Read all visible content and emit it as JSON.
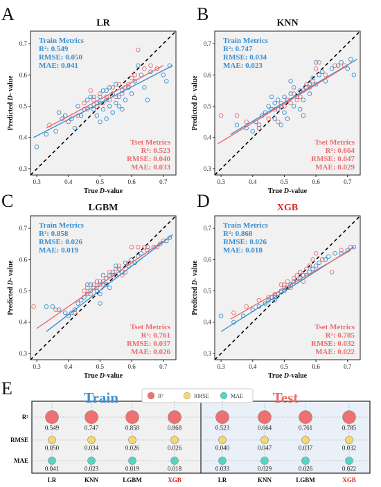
{
  "colors": {
    "train": "#3a8fd0",
    "test": "#ee6b6b",
    "r2_bubble": "#ee7070",
    "rmse_bubble": "#f6d86e",
    "mae_bubble": "#52d6c4",
    "highlight": "#e02020",
    "identity": "#000000"
  },
  "chart_data": [
    {
      "panel_letter": "A",
      "type": "scatter",
      "title": "LR",
      "title_highlight": false,
      "xlabel_prefix": "True ",
      "xlabel_italic": "D",
      "xlabel_suffix": "-value",
      "ylabel_prefix": "Predicted ",
      "ylabel_italic": "D",
      "ylabel_suffix": "- value",
      "xlim": [
        0.28,
        0.74
      ],
      "ylim": [
        0.28,
        0.74
      ],
      "xticks": [
        0.3,
        0.4,
        0.5,
        0.6,
        0.7
      ],
      "yticks": [
        0.3,
        0.4,
        0.5,
        0.6,
        0.7
      ],
      "train_metrics": {
        "heading": "Train Metrics",
        "r2": "R²: 0.549",
        "rmse": "RMSE: 0.050",
        "mae": "MAE: 0.041"
      },
      "test_metrics": {
        "heading": "Tset Metrics",
        "r2": "R²: 0.523",
        "rmse": "RMSE: 0.040",
        "mae": "MAE: 0.033"
      },
      "train_fit": [
        [
          0.29,
          0.4
        ],
        [
          0.73,
          0.63
        ]
      ],
      "test_fit": [
        [
          0.33,
          0.43
        ],
        [
          0.7,
          0.63
        ]
      ],
      "train_points": [
        [
          0.3,
          0.37
        ],
        [
          0.33,
          0.41
        ],
        [
          0.36,
          0.42
        ],
        [
          0.37,
          0.48
        ],
        [
          0.38,
          0.46
        ],
        [
          0.39,
          0.47
        ],
        [
          0.4,
          0.45
        ],
        [
          0.41,
          0.46
        ],
        [
          0.42,
          0.43
        ],
        [
          0.43,
          0.5
        ],
        [
          0.44,
          0.47
        ],
        [
          0.45,
          0.49
        ],
        [
          0.46,
          0.52
        ],
        [
          0.47,
          0.5
        ],
        [
          0.48,
          0.53
        ],
        [
          0.48,
          0.49
        ],
        [
          0.49,
          0.51
        ],
        [
          0.49,
          0.47
        ],
        [
          0.5,
          0.53
        ],
        [
          0.5,
          0.45
        ],
        [
          0.51,
          0.55
        ],
        [
          0.51,
          0.49
        ],
        [
          0.52,
          0.52
        ],
        [
          0.52,
          0.46
        ],
        [
          0.53,
          0.56
        ],
        [
          0.53,
          0.5
        ],
        [
          0.54,
          0.54
        ],
        [
          0.54,
          0.48
        ],
        [
          0.55,
          0.57
        ],
        [
          0.55,
          0.51
        ],
        [
          0.56,
          0.53
        ],
        [
          0.57,
          0.55
        ],
        [
          0.57,
          0.49
        ],
        [
          0.58,
          0.52
        ],
        [
          0.59,
          0.56
        ],
        [
          0.6,
          0.54
        ],
        [
          0.61,
          0.58
        ],
        [
          0.62,
          0.63
        ],
        [
          0.63,
          0.6
        ],
        [
          0.64,
          0.56
        ],
        [
          0.65,
          0.52
        ],
        [
          0.66,
          0.61
        ],
        [
          0.68,
          0.62
        ],
        [
          0.7,
          0.6
        ],
        [
          0.71,
          0.58
        ],
        [
          0.72,
          0.63
        ],
        [
          0.52,
          0.55
        ],
        [
          0.47,
          0.53
        ],
        [
          0.56,
          0.5
        ],
        [
          0.5,
          0.51
        ]
      ],
      "test_points": [
        [
          0.34,
          0.44
        ],
        [
          0.4,
          0.45
        ],
        [
          0.43,
          0.47
        ],
        [
          0.45,
          0.51
        ],
        [
          0.46,
          0.49
        ],
        [
          0.48,
          0.52
        ],
        [
          0.49,
          0.5
        ],
        [
          0.5,
          0.54
        ],
        [
          0.51,
          0.51
        ],
        [
          0.52,
          0.53
        ],
        [
          0.53,
          0.52
        ],
        [
          0.54,
          0.56
        ],
        [
          0.55,
          0.53
        ],
        [
          0.56,
          0.57
        ],
        [
          0.57,
          0.54
        ],
        [
          0.58,
          0.56
        ],
        [
          0.59,
          0.57
        ],
        [
          0.6,
          0.59
        ],
        [
          0.61,
          0.6
        ],
        [
          0.62,
          0.68
        ],
        [
          0.64,
          0.62
        ],
        [
          0.66,
          0.63
        ],
        [
          0.68,
          0.62
        ],
        [
          0.47,
          0.55
        ]
      ]
    },
    {
      "panel_letter": "B",
      "type": "scatter",
      "title": "KNN",
      "title_highlight": false,
      "xlabel_prefix": "True ",
      "xlabel_italic": "D",
      "xlabel_suffix": "-value",
      "ylabel_prefix": "Predicted ",
      "ylabel_italic": "D",
      "ylabel_suffix": "- value",
      "xlim": [
        0.28,
        0.74
      ],
      "ylim": [
        0.28,
        0.74
      ],
      "xticks": [
        0.3,
        0.4,
        0.5,
        0.6,
        0.7
      ],
      "yticks": [
        0.3,
        0.4,
        0.5,
        0.6,
        0.7
      ],
      "train_metrics": {
        "heading": "Train Metrics",
        "r2": "R²: 0.747",
        "rmse": "RMSE: 0.034",
        "mae": "MAE: 0.023"
      },
      "test_metrics": {
        "heading": "Tset Metrics",
        "r2": "R²: 0.664",
        "rmse": "RMSE: 0.047",
        "mae": "MAE: 0.029"
      },
      "train_fit": [
        [
          0.33,
          0.41
        ],
        [
          0.73,
          0.65
        ]
      ],
      "test_fit": [
        [
          0.29,
          0.38
        ],
        [
          0.7,
          0.63
        ]
      ],
      "train_points": [
        [
          0.35,
          0.44
        ],
        [
          0.38,
          0.43
        ],
        [
          0.4,
          0.42
        ],
        [
          0.41,
          0.45
        ],
        [
          0.42,
          0.44
        ],
        [
          0.43,
          0.47
        ],
        [
          0.44,
          0.48
        ],
        [
          0.45,
          0.5
        ],
        [
          0.46,
          0.49
        ],
        [
          0.47,
          0.51
        ],
        [
          0.47,
          0.46
        ],
        [
          0.48,
          0.52
        ],
        [
          0.48,
          0.49
        ],
        [
          0.49,
          0.5
        ],
        [
          0.5,
          0.53
        ],
        [
          0.5,
          0.48
        ],
        [
          0.51,
          0.52
        ],
        [
          0.51,
          0.46
        ],
        [
          0.52,
          0.54
        ],
        [
          0.53,
          0.5
        ],
        [
          0.53,
          0.56
        ],
        [
          0.54,
          0.53
        ],
        [
          0.55,
          0.55
        ],
        [
          0.55,
          0.49
        ],
        [
          0.56,
          0.52
        ],
        [
          0.57,
          0.56
        ],
        [
          0.58,
          0.54
        ],
        [
          0.58,
          0.57
        ],
        [
          0.59,
          0.59
        ],
        [
          0.6,
          0.57
        ],
        [
          0.61,
          0.6
        ],
        [
          0.62,
          0.61
        ],
        [
          0.63,
          0.58
        ],
        [
          0.65,
          0.62
        ],
        [
          0.67,
          0.63
        ],
        [
          0.68,
          0.64
        ],
        [
          0.7,
          0.62
        ],
        [
          0.71,
          0.65
        ],
        [
          0.72,
          0.6
        ],
        [
          0.52,
          0.58
        ],
        [
          0.49,
          0.44
        ],
        [
          0.56,
          0.47
        ],
        [
          0.46,
          0.53
        ],
        [
          0.6,
          0.64
        ]
      ],
      "test_points": [
        [
          0.3,
          0.47
        ],
        [
          0.35,
          0.47
        ],
        [
          0.38,
          0.45
        ],
        [
          0.42,
          0.43
        ],
        [
          0.45,
          0.46
        ],
        [
          0.47,
          0.49
        ],
        [
          0.49,
          0.51
        ],
        [
          0.5,
          0.5
        ],
        [
          0.51,
          0.52
        ],
        [
          0.52,
          0.51
        ],
        [
          0.53,
          0.54
        ],
        [
          0.54,
          0.52
        ],
        [
          0.55,
          0.53
        ],
        [
          0.56,
          0.55
        ],
        [
          0.57,
          0.57
        ],
        [
          0.58,
          0.56
        ],
        [
          0.59,
          0.58
        ],
        [
          0.6,
          0.62
        ],
        [
          0.61,
          0.64
        ],
        [
          0.63,
          0.6
        ],
        [
          0.66,
          0.63
        ],
        [
          0.69,
          0.63
        ],
        [
          0.48,
          0.45
        ]
      ]
    },
    {
      "panel_letter": "C",
      "type": "scatter",
      "title": "LGBM",
      "title_highlight": false,
      "xlabel_prefix": "True ",
      "xlabel_italic": "D",
      "xlabel_suffix": "-value",
      "ylabel_prefix": "Predicted ",
      "ylabel_italic": "D",
      "ylabel_suffix": "- value",
      "xlim": [
        0.28,
        0.74
      ],
      "ylim": [
        0.28,
        0.74
      ],
      "xticks": [
        0.3,
        0.4,
        0.5,
        0.6,
        0.7
      ],
      "yticks": [
        0.3,
        0.4,
        0.5,
        0.6,
        0.7
      ],
      "train_metrics": {
        "heading": "Train Metrics",
        "r2": "R²: 0.858",
        "rmse": "RMSE: 0.026",
        "mae": "MAE: 0.019"
      },
      "test_metrics": {
        "heading": "Tset Metrics",
        "r2": "R²: 0.761",
        "rmse": "RMSE: 0.037",
        "mae": "MAE: 0.026"
      },
      "train_fit": [
        [
          0.33,
          0.37
        ],
        [
          0.73,
          0.68
        ]
      ],
      "test_fit": [
        [
          0.3,
          0.38
        ],
        [
          0.7,
          0.66
        ]
      ],
      "train_points": [
        [
          0.33,
          0.45
        ],
        [
          0.35,
          0.45
        ],
        [
          0.37,
          0.44
        ],
        [
          0.39,
          0.43
        ],
        [
          0.4,
          0.42
        ],
        [
          0.41,
          0.43
        ],
        [
          0.42,
          0.44
        ],
        [
          0.43,
          0.46
        ],
        [
          0.44,
          0.47
        ],
        [
          0.45,
          0.48
        ],
        [
          0.46,
          0.49
        ],
        [
          0.47,
          0.5
        ],
        [
          0.47,
          0.52
        ],
        [
          0.48,
          0.51
        ],
        [
          0.49,
          0.5
        ],
        [
          0.49,
          0.53
        ],
        [
          0.5,
          0.52
        ],
        [
          0.5,
          0.49
        ],
        [
          0.51,
          0.53
        ],
        [
          0.51,
          0.55
        ],
        [
          0.52,
          0.52
        ],
        [
          0.52,
          0.54
        ],
        [
          0.53,
          0.55
        ],
        [
          0.53,
          0.51
        ],
        [
          0.54,
          0.56
        ],
        [
          0.55,
          0.55
        ],
        [
          0.55,
          0.58
        ],
        [
          0.56,
          0.57
        ],
        [
          0.57,
          0.56
        ],
        [
          0.58,
          0.59
        ],
        [
          0.59,
          0.58
        ],
        [
          0.6,
          0.6
        ],
        [
          0.61,
          0.59
        ],
        [
          0.62,
          0.61
        ],
        [
          0.63,
          0.62
        ],
        [
          0.65,
          0.63
        ],
        [
          0.67,
          0.64
        ],
        [
          0.69,
          0.65
        ],
        [
          0.71,
          0.66
        ],
        [
          0.72,
          0.67
        ],
        [
          0.5,
          0.46
        ],
        [
          0.46,
          0.52
        ]
      ],
      "test_points": [
        [
          0.29,
          0.45
        ],
        [
          0.36,
          0.44
        ],
        [
          0.42,
          0.43
        ],
        [
          0.45,
          0.5
        ],
        [
          0.46,
          0.51
        ],
        [
          0.47,
          0.49
        ],
        [
          0.48,
          0.52
        ],
        [
          0.49,
          0.51
        ],
        [
          0.5,
          0.53
        ],
        [
          0.51,
          0.52
        ],
        [
          0.52,
          0.54
        ],
        [
          0.53,
          0.56
        ],
        [
          0.54,
          0.55
        ],
        [
          0.55,
          0.57
        ],
        [
          0.56,
          0.58
        ],
        [
          0.57,
          0.55
        ],
        [
          0.58,
          0.56
        ],
        [
          0.59,
          0.59
        ],
        [
          0.6,
          0.64
        ],
        [
          0.62,
          0.64
        ],
        [
          0.64,
          0.64
        ],
        [
          0.65,
          0.64
        ],
        [
          0.68,
          0.64
        ],
        [
          0.7,
          0.66
        ]
      ]
    },
    {
      "panel_letter": "D",
      "type": "scatter",
      "title": "XGB",
      "title_highlight": true,
      "xlabel_prefix": "True ",
      "xlabel_italic": "D",
      "xlabel_suffix": "-value",
      "ylabel_prefix": "Predicted ",
      "ylabel_italic": "D",
      "ylabel_suffix": "- value",
      "xlim": [
        0.28,
        0.74
      ],
      "ylim": [
        0.28,
        0.74
      ],
      "xticks": [
        0.3,
        0.4,
        0.5,
        0.6,
        0.7
      ],
      "yticks": [
        0.3,
        0.4,
        0.5,
        0.6,
        0.7
      ],
      "train_metrics": {
        "heading": "Train Metrics",
        "r2": "R²: 0.868",
        "rmse": "RMSE: 0.026",
        "mae": "MAE: 0.018"
      },
      "test_metrics": {
        "heading": "Tset Metrics",
        "r2": "R²: 0.785",
        "rmse": "RMSE: 0.032",
        "mae": "MAE: 0.022"
      },
      "train_fit": [
        [
          0.3,
          0.37
        ],
        [
          0.72,
          0.64
        ]
      ],
      "test_fit": [
        [
          0.33,
          0.41
        ],
        [
          0.71,
          0.63
        ]
      ],
      "train_points": [
        [
          0.3,
          0.42
        ],
        [
          0.34,
          0.4
        ],
        [
          0.37,
          0.42
        ],
        [
          0.4,
          0.44
        ],
        [
          0.42,
          0.45
        ],
        [
          0.44,
          0.46
        ],
        [
          0.45,
          0.47
        ],
        [
          0.46,
          0.48
        ],
        [
          0.47,
          0.48
        ],
        [
          0.48,
          0.49
        ],
        [
          0.49,
          0.5
        ],
        [
          0.5,
          0.51
        ],
        [
          0.51,
          0.51
        ],
        [
          0.52,
          0.52
        ],
        [
          0.53,
          0.53
        ],
        [
          0.54,
          0.53
        ],
        [
          0.55,
          0.54
        ],
        [
          0.56,
          0.55
        ],
        [
          0.57,
          0.55
        ],
        [
          0.58,
          0.56
        ],
        [
          0.59,
          0.57
        ],
        [
          0.6,
          0.58
        ],
        [
          0.61,
          0.59
        ],
        [
          0.62,
          0.6
        ],
        [
          0.63,
          0.6
        ],
        [
          0.64,
          0.61
        ],
        [
          0.66,
          0.62
        ],
        [
          0.68,
          0.62
        ],
        [
          0.7,
          0.63
        ],
        [
          0.72,
          0.64
        ],
        [
          0.5,
          0.5
        ],
        [
          0.47,
          0.47
        ],
        [
          0.55,
          0.56
        ],
        [
          0.58,
          0.58
        ]
      ],
      "test_points": [
        [
          0.34,
          0.43
        ],
        [
          0.38,
          0.45
        ],
        [
          0.42,
          0.47
        ],
        [
          0.45,
          0.48
        ],
        [
          0.47,
          0.49
        ],
        [
          0.49,
          0.52
        ],
        [
          0.5,
          0.52
        ],
        [
          0.51,
          0.53
        ],
        [
          0.52,
          0.51
        ],
        [
          0.53,
          0.54
        ],
        [
          0.54,
          0.55
        ],
        [
          0.55,
          0.56
        ],
        [
          0.56,
          0.53
        ],
        [
          0.57,
          0.57
        ],
        [
          0.58,
          0.58
        ],
        [
          0.59,
          0.6
        ],
        [
          0.6,
          0.62
        ],
        [
          0.62,
          0.6
        ],
        [
          0.65,
          0.56
        ],
        [
          0.68,
          0.63
        ],
        [
          0.71,
          0.64
        ]
      ]
    },
    {
      "panel_letter": "E",
      "type": "table",
      "train_heading": "Train",
      "test_heading": "Test",
      "legend": [
        "R²",
        "RMSE",
        "MAE"
      ],
      "row_labels": [
        "R²",
        "RMSE",
        "MAE"
      ],
      "train_models": [
        "LR",
        "KNN",
        "LGBM",
        "XGB"
      ],
      "test_models": [
        "LR",
        "KNN",
        "LGBM",
        "XGB"
      ],
      "highlight_model": "XGB",
      "train_values": [
        [
          "0.549",
          "0.747",
          "0.858",
          "0.868"
        ],
        [
          "0.050",
          "0.034",
          "0.026",
          "0.026"
        ],
        [
          "0.041",
          "0.023",
          "0.019",
          "0.018"
        ]
      ],
      "test_values": [
        [
          "0.523",
          "0.664",
          "0.761",
          "0.785"
        ],
        [
          "0.040",
          "0.047",
          "0.037",
          "0.032"
        ],
        [
          "0.033",
          "0.029",
          "0.026",
          "0.022"
        ]
      ]
    }
  ]
}
